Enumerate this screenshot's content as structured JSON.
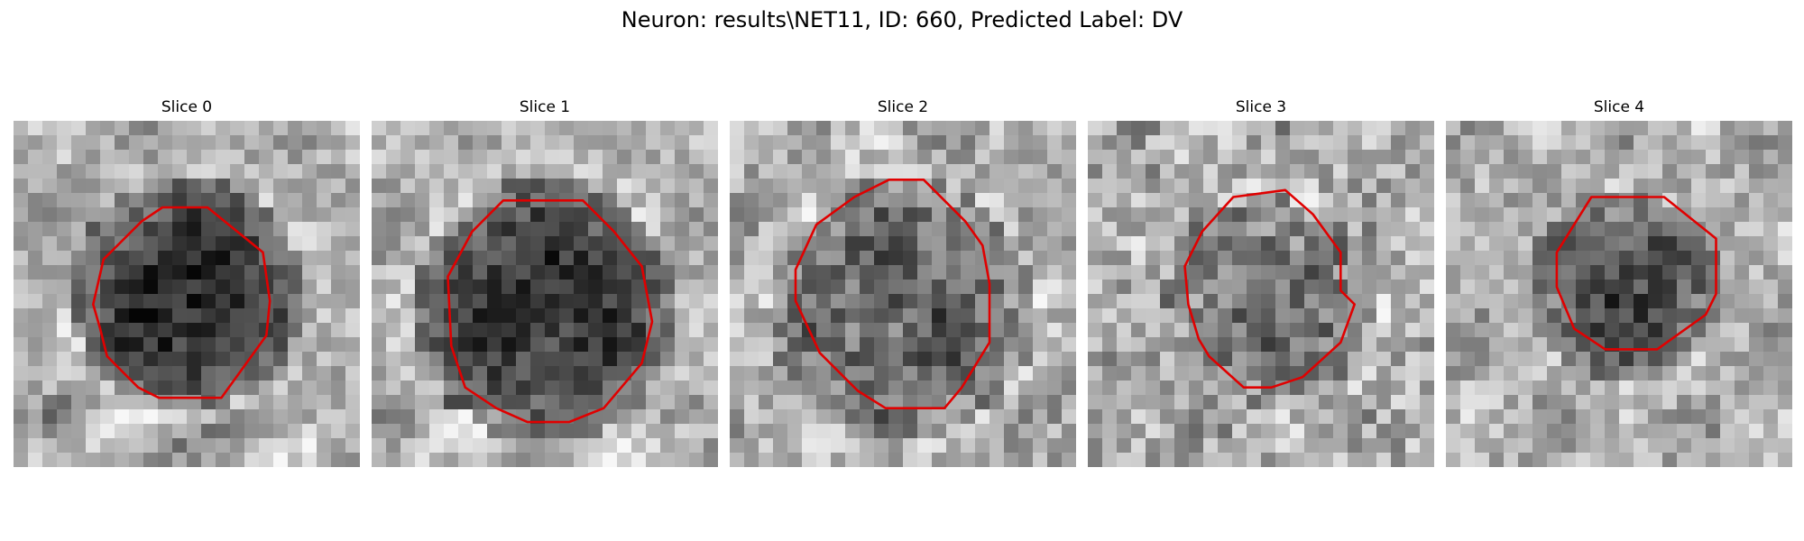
{
  "figure": {
    "title": "Neuron: results\\NET11, ID: 660, Predicted Label: DV"
  },
  "panels": [
    {
      "title": "Slice 0"
    },
    {
      "title": "Slice 1"
    },
    {
      "title": "Slice 2"
    },
    {
      "title": "Slice 3"
    },
    {
      "title": "Slice 4"
    }
  ],
  "colors": {
    "contour": "#e00000",
    "background": "#ffffff"
  }
}
